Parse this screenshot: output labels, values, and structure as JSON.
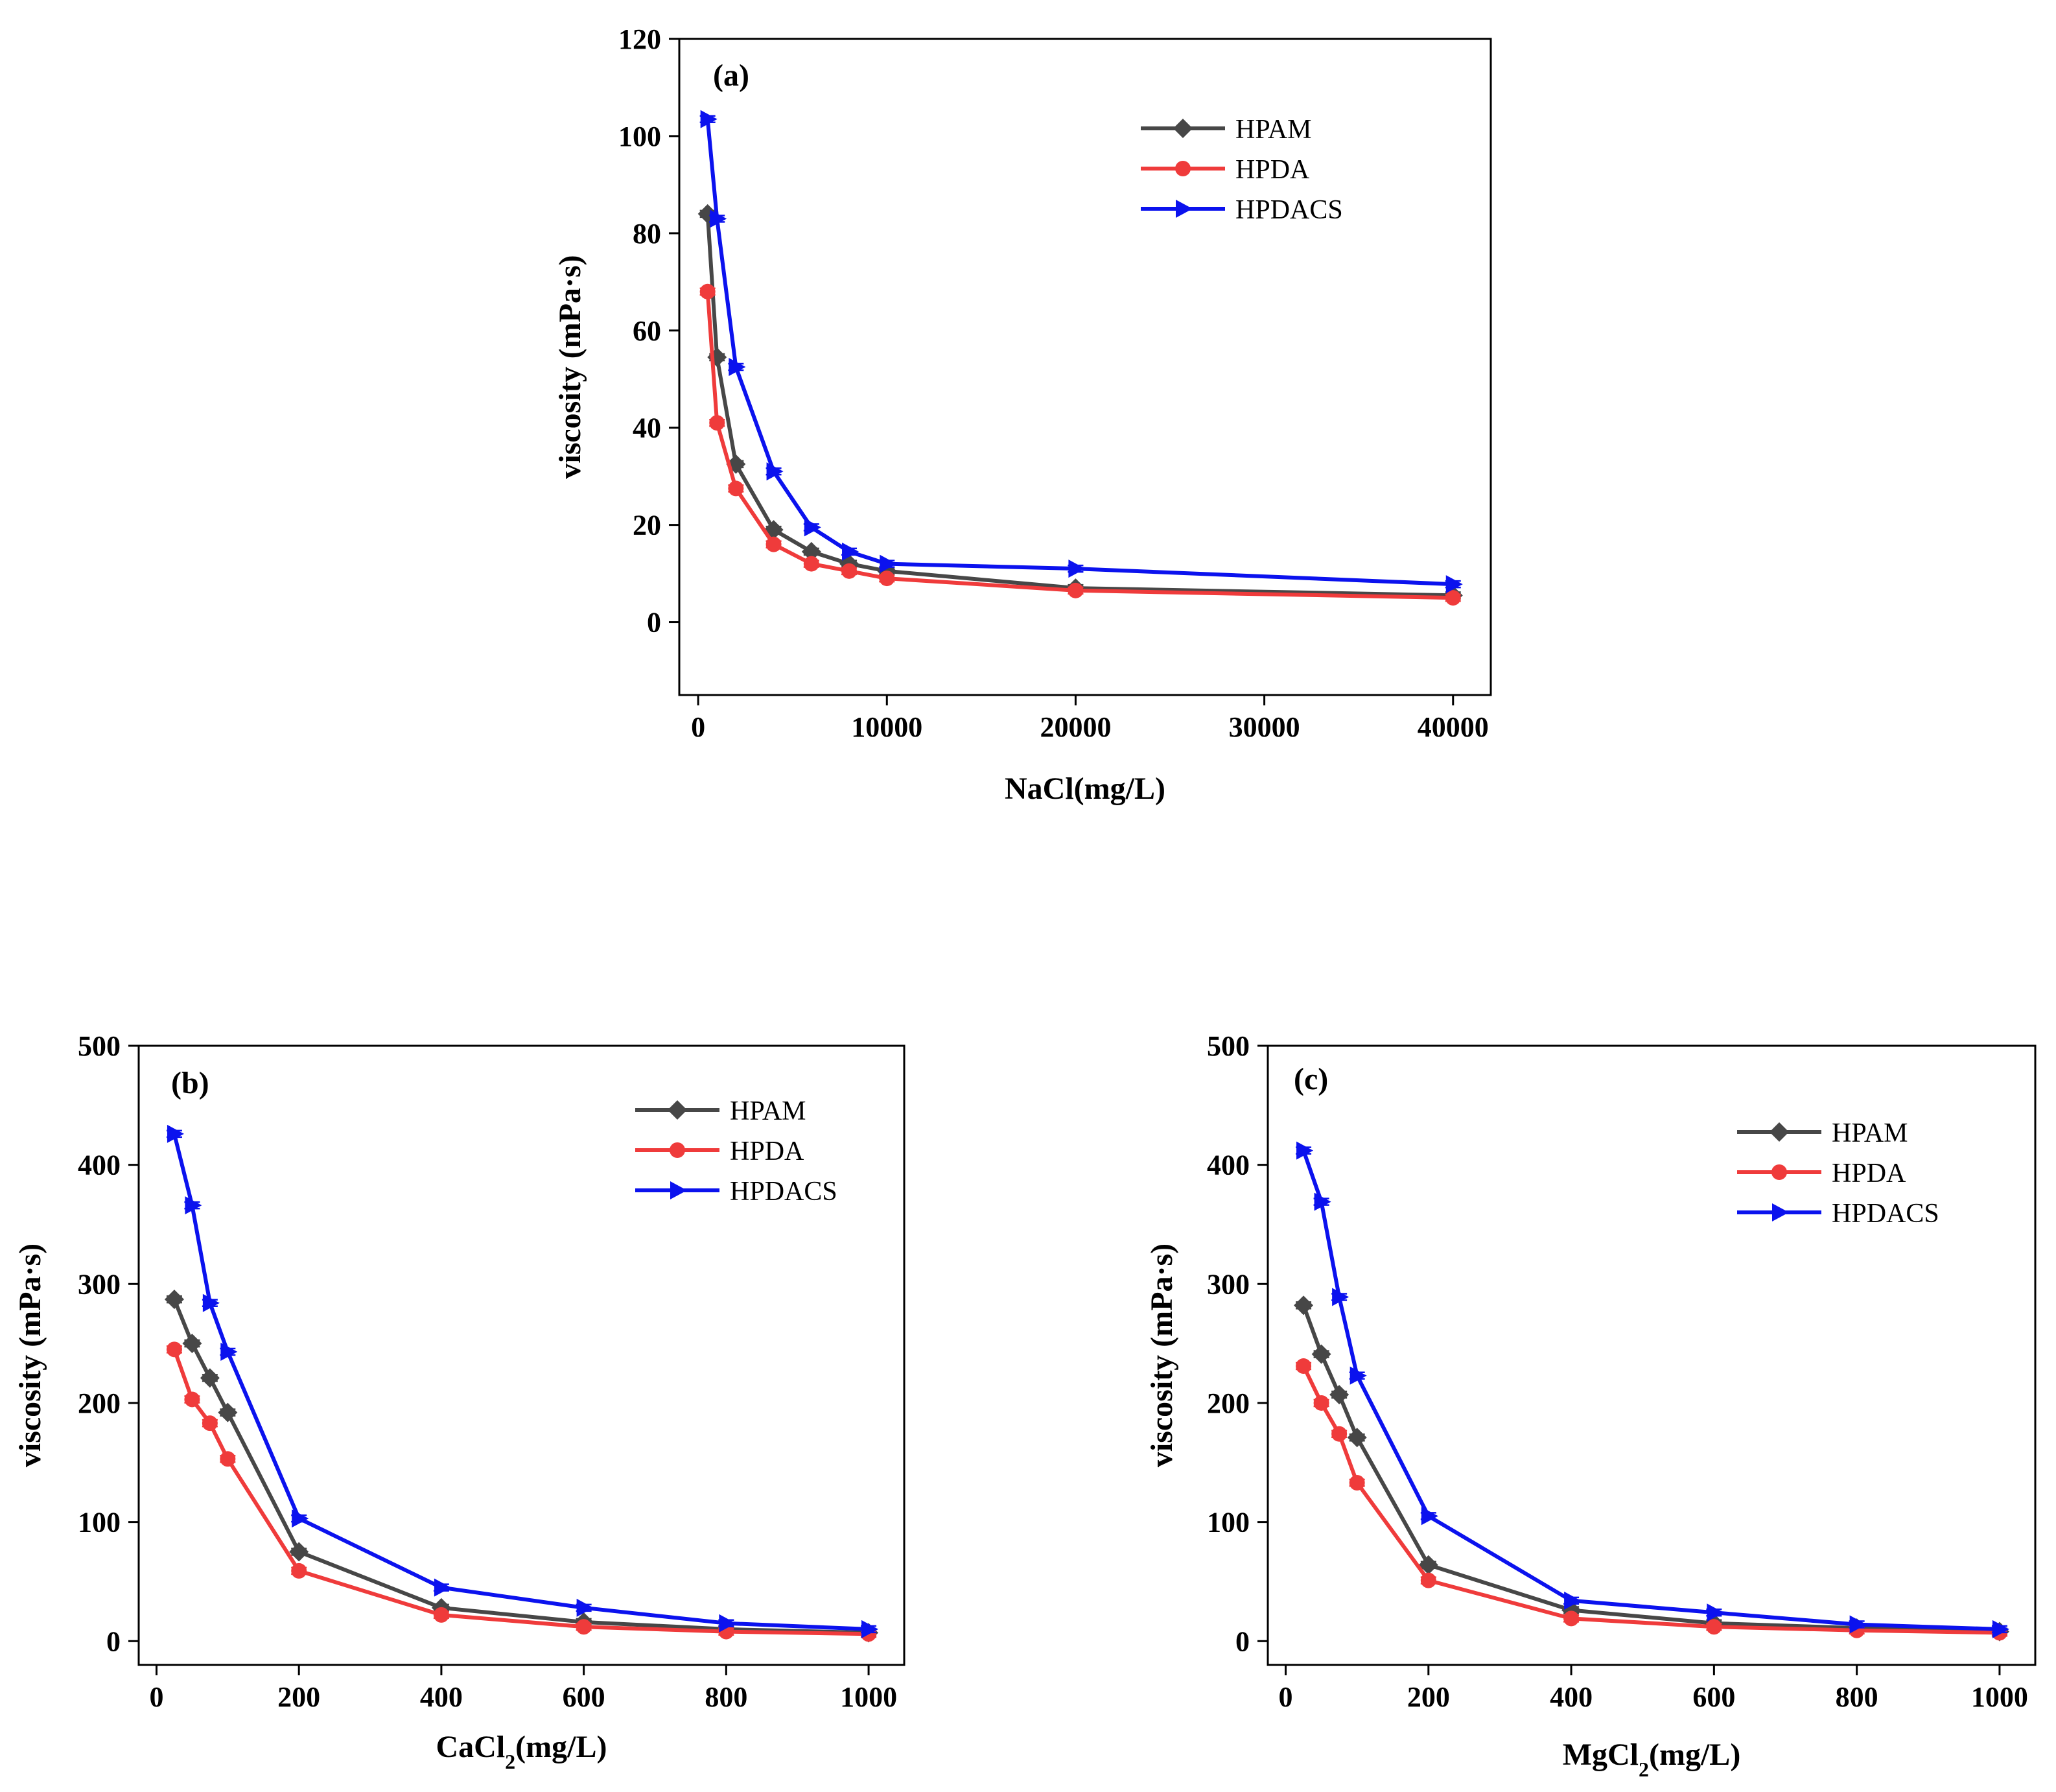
{
  "colors": {
    "HPAM": "#474747",
    "HPDA": "#ef3b3b",
    "HPDACS": "#0b12ee",
    "axis": "#000000"
  },
  "chart_data": [
    {
      "type": "line",
      "panel": "(a)",
      "xlabel": "NaCl(mg/L)",
      "xlabel_parts": [
        "NaCl(mg/L)"
      ],
      "ylabel": "viscosity (mPa·s)",
      "xlim": [
        -1000,
        42000
      ],
      "ylim": [
        -15,
        120
      ],
      "xticks": [
        0,
        10000,
        20000,
        30000,
        40000
      ],
      "yticks": [
        0,
        20,
        40,
        60,
        80,
        100,
        120
      ],
      "x": [
        500,
        1000,
        2000,
        4000,
        6000,
        8000,
        10000,
        20000,
        40000
      ],
      "legend": [
        "HPAM",
        "HPDA",
        "HPDACS"
      ],
      "legend_position": "top-right",
      "series": [
        {
          "name": "HPAM",
          "marker": "diamond",
          "values": [
            84,
            54.5,
            32.5,
            19,
            14.5,
            12,
            10.5,
            7,
            5.5
          ]
        },
        {
          "name": "HPDA",
          "marker": "circle",
          "values": [
            68,
            41,
            27.5,
            16,
            12,
            10.5,
            9,
            6.5,
            5
          ]
        },
        {
          "name": "HPDACS",
          "marker": "triangle-right",
          "values": [
            103.5,
            83,
            52.5,
            31,
            19.5,
            14.5,
            12,
            11,
            7.8
          ]
        }
      ]
    },
    {
      "type": "line",
      "panel": "(b)",
      "xlabel": "CaCl2(mg/L)",
      "xlabel_parts": [
        "CaCl",
        "2",
        "(mg/L)"
      ],
      "ylabel": "viscosity (mPa·s)",
      "xlim": [
        -25,
        1050
      ],
      "ylim": [
        -20,
        500
      ],
      "xticks": [
        0,
        200,
        400,
        600,
        800,
        1000
      ],
      "yticks": [
        0,
        100,
        200,
        300,
        400,
        500
      ],
      "x": [
        25,
        50,
        75,
        100,
        200,
        400,
        600,
        800,
        1000
      ],
      "legend": [
        "HPAM",
        "HPDA",
        "HPDACS"
      ],
      "legend_position": "top-right",
      "series": [
        {
          "name": "HPAM",
          "marker": "diamond",
          "values": [
            287,
            250,
            221,
            192,
            75,
            28,
            16,
            10,
            7
          ]
        },
        {
          "name": "HPDA",
          "marker": "circle",
          "values": [
            245,
            203,
            183,
            153,
            59,
            22,
            12,
            8,
            6
          ]
        },
        {
          "name": "HPDACS",
          "marker": "triangle-right",
          "values": [
            426,
            366,
            284,
            243,
            103,
            45,
            28,
            15,
            10
          ]
        }
      ]
    },
    {
      "type": "line",
      "panel": "(c)",
      "xlabel": "MgCl2(mg/L)",
      "xlabel_parts": [
        "MgCl",
        "2",
        "(mg/L)"
      ],
      "ylabel": "viscosity (mPa·s)",
      "xlim": [
        -25,
        1050
      ],
      "ylim": [
        -20,
        500
      ],
      "xticks": [
        0,
        200,
        400,
        600,
        800,
        1000
      ],
      "yticks": [
        0,
        100,
        200,
        300,
        400,
        500
      ],
      "x": [
        25,
        50,
        75,
        100,
        200,
        400,
        600,
        800,
        1000
      ],
      "legend": [
        "HPAM",
        "HPDA",
        "HPDACS"
      ],
      "legend_position": "top-right",
      "series": [
        {
          "name": "HPAM",
          "marker": "diamond",
          "values": [
            282,
            241,
            207,
            171,
            64,
            26,
            15,
            11,
            8
          ]
        },
        {
          "name": "HPDA",
          "marker": "circle",
          "values": [
            231,
            200,
            174,
            133,
            51,
            19,
            12,
            9,
            7
          ]
        },
        {
          "name": "HPDACS",
          "marker": "triangle-right",
          "values": [
            412,
            369,
            289,
            223,
            105,
            34,
            24,
            14,
            10
          ]
        }
      ]
    }
  ]
}
